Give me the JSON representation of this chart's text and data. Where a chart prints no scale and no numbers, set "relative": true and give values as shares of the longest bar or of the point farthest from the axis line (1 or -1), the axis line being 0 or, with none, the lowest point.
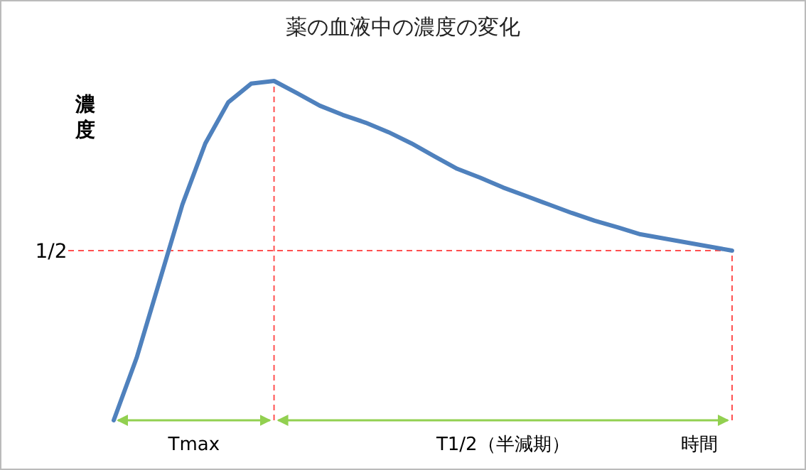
{
  "chart_data": {
    "type": "line",
    "relative": true,
    "title": "薬の血液中の濃度の変化",
    "ylabel": "濃度",
    "xlabel": "時間",
    "categories": [
      null,
      null,
      null,
      null,
      null,
      null,
      null,
      null,
      null,
      null,
      null,
      null,
      null,
      null,
      null,
      null,
      null,
      null,
      null,
      null,
      null,
      null,
      null,
      null,
      null,
      null,
      null,
      null
    ],
    "series": [
      {
        "color": "#4f81bd",
        "values": [
          0,
          0.184,
          0.41,
          0.636,
          0.816,
          0.937,
          0.992,
          1,
          0.964,
          0.927,
          0.9,
          0.877,
          0.849,
          0.816,
          0.778,
          0.741,
          0.715,
          0.686,
          0.661,
          0.636,
          0.611,
          0.588,
          0.569,
          0.548,
          0.536,
          0.524,
          0.512,
          0.5
        ]
      }
    ],
    "ref_lines": [
      {
        "axis": "y",
        "value": 0.5,
        "label": "1/2",
        "color": "#ff5050",
        "line_style": "dashed"
      }
    ],
    "annotations": [
      "Tmax",
      "T1/2（半減期）"
    ],
    "marker": "none",
    "line_style": "solid"
  }
}
